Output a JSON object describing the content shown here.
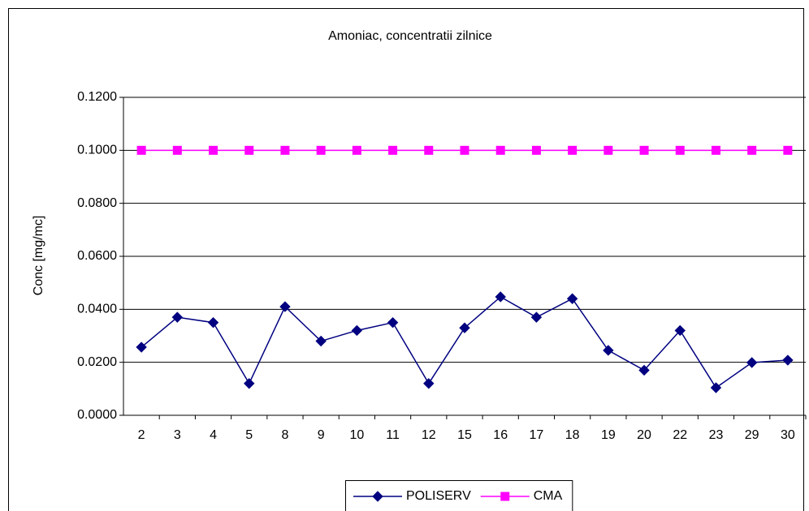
{
  "chart_data": {
    "type": "line",
    "title": "Amoniac, concentratii zilnice",
    "y_label": "Conc [mg/mc]",
    "categories": [
      "2",
      "3",
      "4",
      "5",
      "8",
      "9",
      "10",
      "11",
      "12",
      "15",
      "16",
      "17",
      "18",
      "19",
      "20",
      "22",
      "23",
      "29",
      "30"
    ],
    "series": [
      {
        "name": "POLISERV",
        "color": "#000080",
        "marker": "diamond",
        "values": [
          0.0257,
          0.037,
          0.035,
          0.012,
          0.041,
          0.028,
          0.032,
          0.035,
          0.012,
          0.033,
          0.0447,
          0.037,
          0.044,
          0.0245,
          0.017,
          0.032,
          0.0104,
          0.0199,
          0.0208
        ]
      },
      {
        "name": "CMA",
        "color": "#ff00ff",
        "marker": "square",
        "values": [
          0.1,
          0.1,
          0.1,
          0.1,
          0.1,
          0.1,
          0.1,
          0.1,
          0.1,
          0.1,
          0.1,
          0.1,
          0.1,
          0.1,
          0.1,
          0.1,
          0.1,
          0.1,
          0.1
        ]
      }
    ],
    "ylim": [
      0,
      0.12
    ],
    "yticks": [
      {
        "value": 0,
        "label": "0.0000"
      },
      {
        "value": 0.02,
        "label": "0.0200"
      },
      {
        "value": 0.04,
        "label": "0.0400"
      },
      {
        "value": 0.06,
        "label": "0.0600"
      },
      {
        "value": 0.08,
        "label": "0.0800"
      },
      {
        "value": 0.1,
        "label": "0.1000"
      },
      {
        "value": 0.12,
        "label": "0.1200"
      }
    ],
    "grid": true,
    "legend": "bottom"
  }
}
